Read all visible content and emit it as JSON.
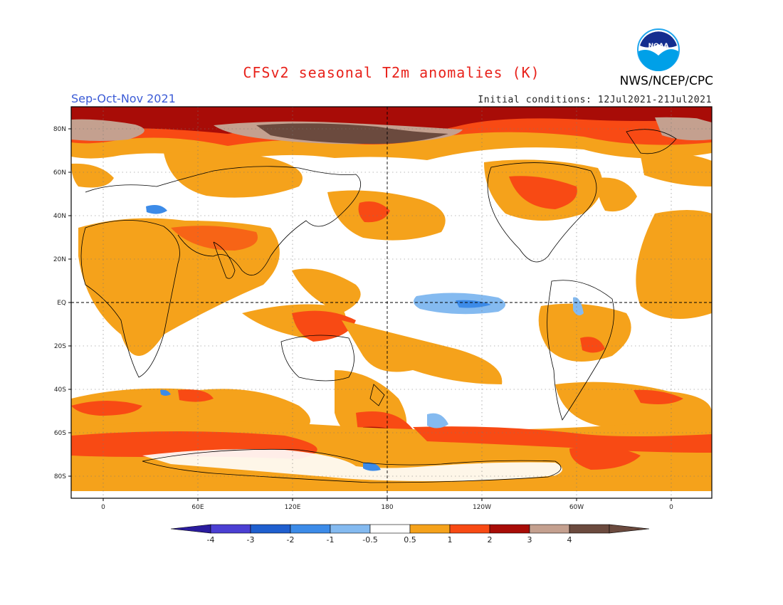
{
  "title": "CFSv2 seasonal T2m anomalies (K)",
  "season": "Sep-Oct-Nov 2021",
  "agency": "NWS/NCEP/CPC",
  "logo_text": "NOAA",
  "initial_conditions": "Initial conditions: 12Jul2021-21Jul2021",
  "map": {
    "lat_ticks": [
      "80N",
      "60N",
      "40N",
      "20N",
      "EQ",
      "20S",
      "40S",
      "60S",
      "80S"
    ],
    "lon_ticks": [
      "0",
      "60E",
      "120E",
      "180",
      "120W",
      "60W",
      "0"
    ]
  },
  "colorbar": {
    "labels": [
      "-4",
      "-3",
      "-2",
      "-1",
      "-0.5",
      "0.5",
      "1",
      "2",
      "3",
      "4"
    ],
    "colors": [
      "#4b3fd3",
      "#1f5fcf",
      "#3c8be8",
      "#84baf0",
      "#ffffff",
      "#f5a21b",
      "#f84a14",
      "#a80c07",
      "#c4a08f",
      "#6b4a3e"
    ],
    "low_end_color": "#2a1c9e",
    "high_end_color": "#6b4a3e"
  }
}
